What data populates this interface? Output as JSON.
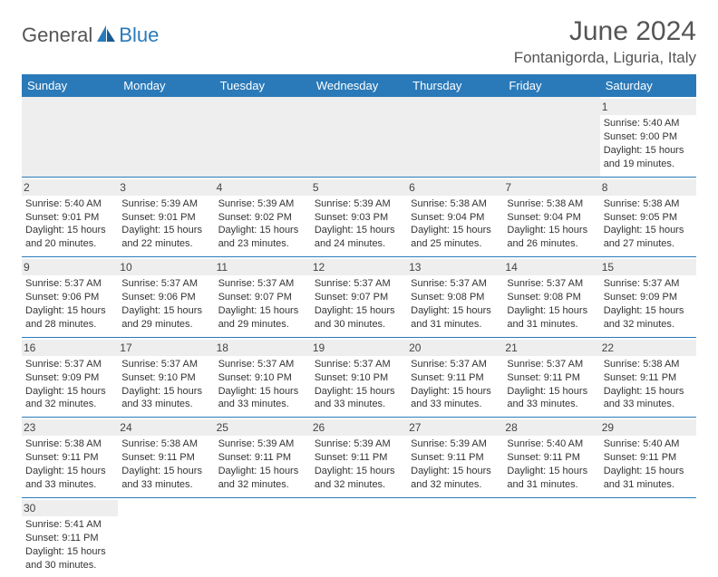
{
  "logo": {
    "part1": "General",
    "part2": "Blue"
  },
  "title": "June 2024",
  "location": "Fontanigorda, Liguria, Italy",
  "colors": {
    "header_bg": "#2a7ab9",
    "daynum_bg": "#eeeeee",
    "text": "#333333"
  },
  "weekdays": [
    "Sunday",
    "Monday",
    "Tuesday",
    "Wednesday",
    "Thursday",
    "Friday",
    "Saturday"
  ],
  "days": {
    "1": {
      "sunrise": "5:40 AM",
      "sunset": "9:00 PM",
      "daylight": "15 hours and 19 minutes."
    },
    "2": {
      "sunrise": "5:40 AM",
      "sunset": "9:01 PM",
      "daylight": "15 hours and 20 minutes."
    },
    "3": {
      "sunrise": "5:39 AM",
      "sunset": "9:01 PM",
      "daylight": "15 hours and 22 minutes."
    },
    "4": {
      "sunrise": "5:39 AM",
      "sunset": "9:02 PM",
      "daylight": "15 hours and 23 minutes."
    },
    "5": {
      "sunrise": "5:39 AM",
      "sunset": "9:03 PM",
      "daylight": "15 hours and 24 minutes."
    },
    "6": {
      "sunrise": "5:38 AM",
      "sunset": "9:04 PM",
      "daylight": "15 hours and 25 minutes."
    },
    "7": {
      "sunrise": "5:38 AM",
      "sunset": "9:04 PM",
      "daylight": "15 hours and 26 minutes."
    },
    "8": {
      "sunrise": "5:38 AM",
      "sunset": "9:05 PM",
      "daylight": "15 hours and 27 minutes."
    },
    "9": {
      "sunrise": "5:37 AM",
      "sunset": "9:06 PM",
      "daylight": "15 hours and 28 minutes."
    },
    "10": {
      "sunrise": "5:37 AM",
      "sunset": "9:06 PM",
      "daylight": "15 hours and 29 minutes."
    },
    "11": {
      "sunrise": "5:37 AM",
      "sunset": "9:07 PM",
      "daylight": "15 hours and 29 minutes."
    },
    "12": {
      "sunrise": "5:37 AM",
      "sunset": "9:07 PM",
      "daylight": "15 hours and 30 minutes."
    },
    "13": {
      "sunrise": "5:37 AM",
      "sunset": "9:08 PM",
      "daylight": "15 hours and 31 minutes."
    },
    "14": {
      "sunrise": "5:37 AM",
      "sunset": "9:08 PM",
      "daylight": "15 hours and 31 minutes."
    },
    "15": {
      "sunrise": "5:37 AM",
      "sunset": "9:09 PM",
      "daylight": "15 hours and 32 minutes."
    },
    "16": {
      "sunrise": "5:37 AM",
      "sunset": "9:09 PM",
      "daylight": "15 hours and 32 minutes."
    },
    "17": {
      "sunrise": "5:37 AM",
      "sunset": "9:10 PM",
      "daylight": "15 hours and 33 minutes."
    },
    "18": {
      "sunrise": "5:37 AM",
      "sunset": "9:10 PM",
      "daylight": "15 hours and 33 minutes."
    },
    "19": {
      "sunrise": "5:37 AM",
      "sunset": "9:10 PM",
      "daylight": "15 hours and 33 minutes."
    },
    "20": {
      "sunrise": "5:37 AM",
      "sunset": "9:11 PM",
      "daylight": "15 hours and 33 minutes."
    },
    "21": {
      "sunrise": "5:37 AM",
      "sunset": "9:11 PM",
      "daylight": "15 hours and 33 minutes."
    },
    "22": {
      "sunrise": "5:38 AM",
      "sunset": "9:11 PM",
      "daylight": "15 hours and 33 minutes."
    },
    "23": {
      "sunrise": "5:38 AM",
      "sunset": "9:11 PM",
      "daylight": "15 hours and 33 minutes."
    },
    "24": {
      "sunrise": "5:38 AM",
      "sunset": "9:11 PM",
      "daylight": "15 hours and 33 minutes."
    },
    "25": {
      "sunrise": "5:39 AM",
      "sunset": "9:11 PM",
      "daylight": "15 hours and 32 minutes."
    },
    "26": {
      "sunrise": "5:39 AM",
      "sunset": "9:11 PM",
      "daylight": "15 hours and 32 minutes."
    },
    "27": {
      "sunrise": "5:39 AM",
      "sunset": "9:11 PM",
      "daylight": "15 hours and 32 minutes."
    },
    "28": {
      "sunrise": "5:40 AM",
      "sunset": "9:11 PM",
      "daylight": "15 hours and 31 minutes."
    },
    "29": {
      "sunrise": "5:40 AM",
      "sunset": "9:11 PM",
      "daylight": "15 hours and 31 minutes."
    },
    "30": {
      "sunrise": "5:41 AM",
      "sunset": "9:11 PM",
      "daylight": "15 hours and 30 minutes."
    }
  },
  "labels": {
    "sunrise": "Sunrise: ",
    "sunset": "Sunset: ",
    "daylight": "Daylight: "
  },
  "layout": {
    "first_day_column": 6,
    "num_days": 30,
    "columns": 7,
    "rows": 6
  }
}
